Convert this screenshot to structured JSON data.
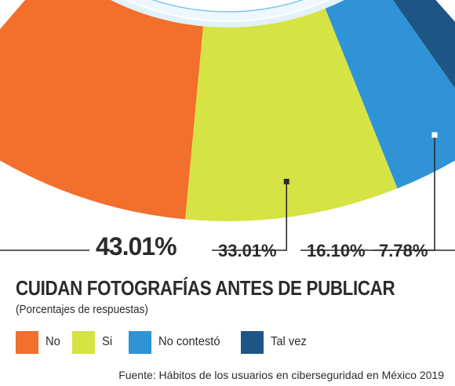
{
  "chart_data": {
    "type": "pie",
    "title": "CUIDAN FOTOGRAFÍAS ANTES DE PUBLICAR",
    "subtitle": "(Porcentajes de respuestas)",
    "unit": "%",
    "categories": [
      "No",
      "Si",
      "No contestó",
      "Tal vez"
    ],
    "values": [
      43.01,
      33.01,
      16.1,
      7.78
    ],
    "value_labels": [
      "43.01%",
      "33.01%",
      "16.10%",
      "7.78%"
    ],
    "colors": [
      "#f36f2c",
      "#d5e344",
      "#2f93d6",
      "#1d5685"
    ],
    "marker_colors": [
      "#ffffff",
      "#2b2b2b",
      "#ffffff",
      "#ffffff"
    ],
    "legend_placement": "bottom",
    "source": "Fuente: Hábitos de los usuarios en ciberseguridad en México 2019"
  }
}
